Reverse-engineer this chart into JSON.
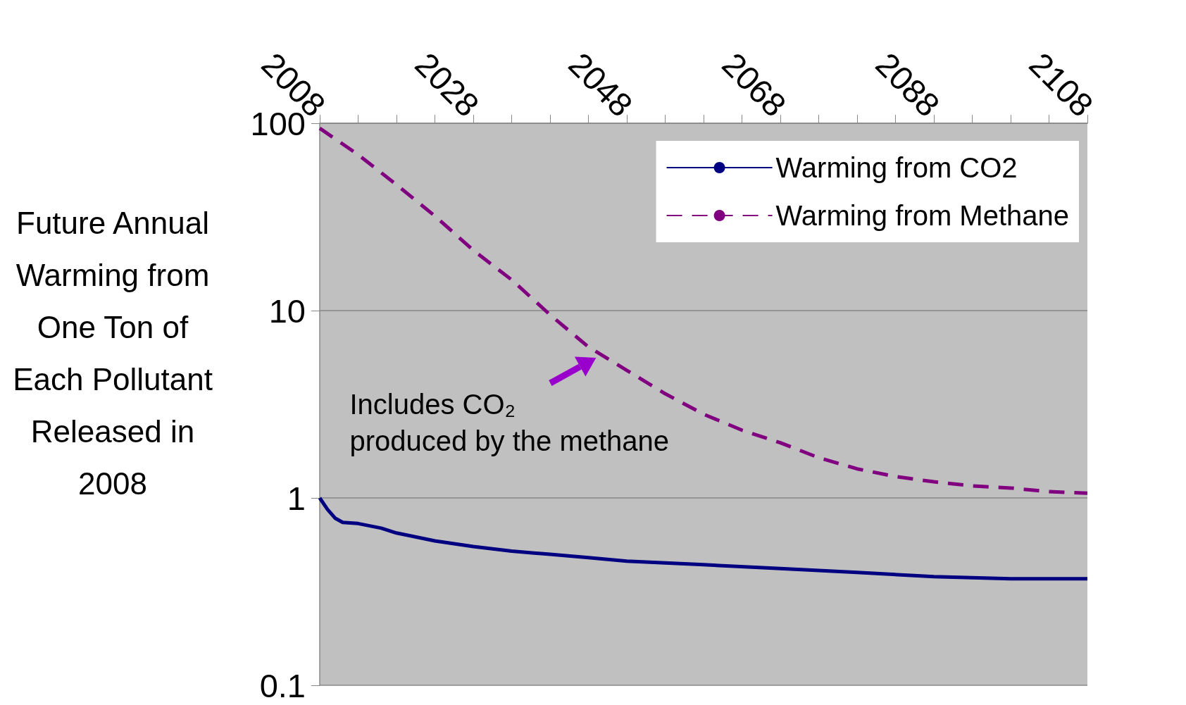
{
  "chart_data": {
    "type": "line",
    "ylabel": "Future Annual Warming from One Ton of Each Pollutant Released in 2008",
    "xlim": [
      2008,
      2108
    ],
    "xticks": [
      2008,
      {
        "value": 2013,
        "label": null
      },
      {
        "value": 2018,
        "label": null
      },
      {
        "value": 2023,
        "label": null
      },
      2028,
      {
        "value": 2033,
        "label": null
      },
      {
        "value": 2038,
        "label": null
      },
      {
        "value": 2043,
        "label": null
      },
      2048,
      {
        "value": 2053,
        "label": null
      },
      {
        "value": 2058,
        "label": null
      },
      {
        "value": 2063,
        "label": null
      },
      2068,
      {
        "value": 2073,
        "label": null
      },
      {
        "value": 2078,
        "label": null
      },
      {
        "value": 2083,
        "label": null
      },
      2088,
      {
        "value": 2093,
        "label": null
      },
      {
        "value": 2098,
        "label": null
      },
      {
        "value": 2103,
        "label": null
      },
      2108
    ],
    "ylim": [
      0.1,
      100
    ],
    "yticks": [
      0.1,
      1,
      10,
      100
    ],
    "log": "y",
    "grid": "y",
    "legend": "top right",
    "series": [
      {
        "name": "Warming from CO2",
        "color": "#000080",
        "line_style": "solid",
        "x": [
          2008,
          2009,
          2010,
          2011,
          2013,
          2016,
          2018,
          2023,
          2028,
          2033,
          2038,
          2043,
          2048,
          2058,
          2068,
          2078,
          2088,
          2098,
          2108
        ],
        "values": [
          1.0,
          0.87,
          0.78,
          0.74,
          0.73,
          0.69,
          0.65,
          0.59,
          0.55,
          0.52,
          0.5,
          0.48,
          0.46,
          0.44,
          0.42,
          0.4,
          0.38,
          0.37,
          0.37
        ]
      },
      {
        "name": "Warming from Methane",
        "color": "#800080",
        "line_style": "dashed",
        "x": [
          2008,
          2013,
          2018,
          2023,
          2028,
          2033,
          2038,
          2043,
          2048,
          2053,
          2058,
          2063,
          2068,
          2073,
          2078,
          2083,
          2088,
          2093,
          2098,
          2103,
          2108
        ],
        "values": [
          94,
          68,
          47,
          32,
          21,
          14.6,
          9.5,
          6.4,
          4.8,
          3.6,
          2.8,
          2.3,
          1.97,
          1.64,
          1.43,
          1.3,
          1.22,
          1.16,
          1.13,
          1.08,
          1.06
        ]
      }
    ],
    "annotations": [
      {
        "text": "Includes CO₂\nproduced by the methane",
        "x": 2044,
        "y": 5.6
      }
    ]
  }
}
